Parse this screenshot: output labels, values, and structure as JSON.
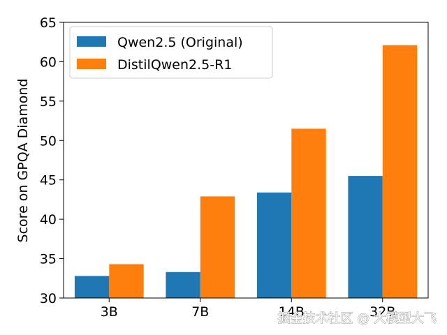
{
  "chart_data": {
    "type": "bar",
    "categories": [
      "3B",
      "7B",
      "14B",
      "32B"
    ],
    "series": [
      {
        "name": "Qwen2.5 (Original)",
        "values": [
          32.8,
          33.3,
          43.4,
          45.5
        ],
        "color": "#1f77b4"
      },
      {
        "name": "DistilQwen2.5-R1",
        "values": [
          34.3,
          42.9,
          51.5,
          62.1
        ],
        "color": "#ff7f0e"
      }
    ],
    "title": "",
    "xlabel": "",
    "ylabel": "Score on GPQA Diamond",
    "ylim": [
      30,
      65
    ],
    "yticks": [
      30,
      35,
      40,
      45,
      50,
      55,
      60,
      65
    ],
    "grid": false,
    "legend": "top-left"
  },
  "watermark": "掘金技术社区 @ 大模型大飞"
}
